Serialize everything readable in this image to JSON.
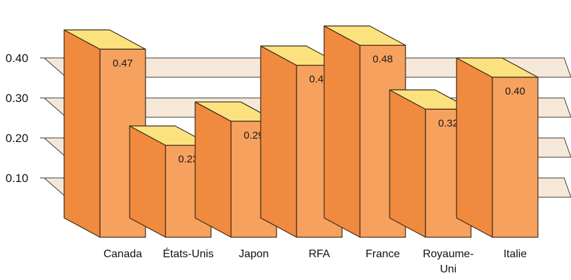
{
  "chart_data": {
    "type": "bar",
    "style": "3d-isometric",
    "categories": [
      "Canada",
      "États-Unis",
      "Japon",
      "RFA",
      "France",
      "Royaume-Uni",
      "Italie"
    ],
    "category_lines": [
      [
        "Canada"
      ],
      [
        "États-Unis"
      ],
      [
        "Japon"
      ],
      [
        "RFA"
      ],
      [
        "France"
      ],
      [
        "Royaume-",
        "Uni"
      ],
      [
        "Italie"
      ]
    ],
    "values": [
      0.47,
      0.23,
      0.29,
      0.43,
      0.48,
      0.32,
      0.4
    ],
    "value_labels": [
      "0.47",
      "0.23",
      "0.29",
      "0.43",
      "0.48",
      "0.32",
      "0.40"
    ],
    "yticks": [
      0.1,
      0.2,
      0.3,
      0.4
    ],
    "ytick_labels": [
      "0.10",
      "0.20",
      "0.30",
      "0.40"
    ],
    "ylim": [
      0,
      0.5
    ],
    "grid": true,
    "legend": "none",
    "colors": {
      "bar_front": "#f7a15e",
      "bar_side": "#f08a3e",
      "bar_top": "#fbe27e",
      "bar_stroke": "#3a2a1a",
      "grid_fill": "#f6e8d8",
      "grid_stroke": "#3a3a3a"
    }
  }
}
